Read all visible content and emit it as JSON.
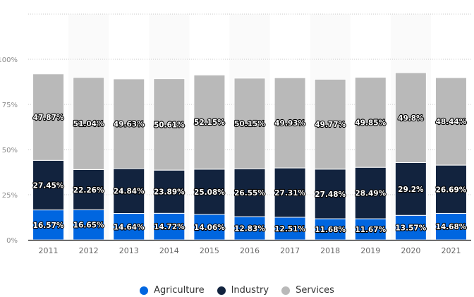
{
  "chart_data": {
    "type": "bar",
    "stacked": true,
    "title": "",
    "xlabel": "",
    "ylabel": "",
    "ylim": [
      0,
      125
    ],
    "yticks": [
      0,
      25,
      50,
      75,
      100,
      125
    ],
    "ytick_labels": [
      "0%",
      "25%",
      "50%",
      "75%",
      "100%",
      ""
    ],
    "grid": true,
    "legend_position": "bottom",
    "categories": [
      "2011",
      "2012",
      "2013",
      "2014",
      "2015",
      "2016",
      "2017",
      "2018",
      "2019",
      "2020",
      "2021"
    ],
    "series": [
      {
        "name": "Agriculture",
        "color": "#0066e0",
        "values": [
          16.57,
          16.65,
          14.64,
          14.72,
          14.06,
          12.83,
          12.51,
          11.68,
          11.67,
          13.57,
          14.68
        ],
        "labels": [
          "16.57%",
          "16.65%",
          "14.64%",
          "14.72%",
          "14.06%",
          "12.83%",
          "12.51%",
          "11.68%",
          "11.67%",
          "13.57%",
          "14.68%"
        ]
      },
      {
        "name": "Industry",
        "color": "#12233e",
        "values": [
          27.45,
          22.26,
          24.84,
          23.89,
          25.08,
          26.55,
          27.31,
          27.48,
          28.49,
          29.2,
          26.69
        ],
        "labels": [
          "27.45%",
          "22.26%",
          "24.84%",
          "23.89%",
          "25.08%",
          "26.55%",
          "27.31%",
          "27.48%",
          "28.49%",
          "29.2%",
          "26.69%"
        ]
      },
      {
        "name": "Services",
        "color": "#b9b9b9",
        "values": [
          47.87,
          51.04,
          49.63,
          50.61,
          52.15,
          50.15,
          49.93,
          49.77,
          49.85,
          49.8,
          48.44
        ],
        "labels": [
          "47.87%",
          "51.04%",
          "49.63%",
          "50.61%",
          "52.15%",
          "50.15%",
          "49.93%",
          "49.77%",
          "49.85%",
          "49.8%",
          "48.44%"
        ]
      }
    ]
  }
}
